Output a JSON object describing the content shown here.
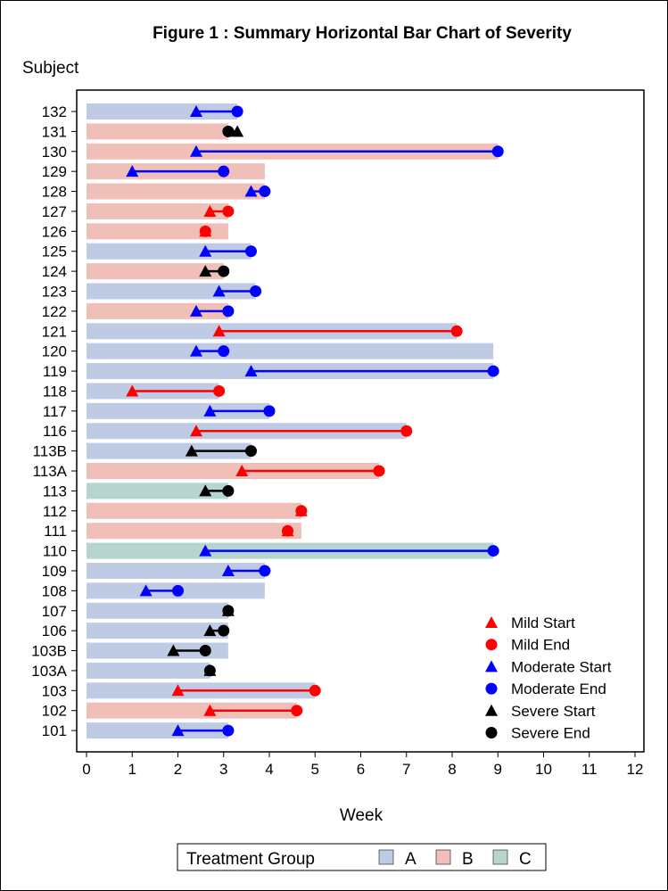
{
  "chart_data": {
    "type": "bar",
    "title": "Figure 1 : Summary Horizontal Bar Chart of Severity",
    "ylabel": "Subject",
    "xlabel": "Week",
    "xlim": [
      0,
      12
    ],
    "xticks": [
      0,
      1,
      2,
      3,
      4,
      5,
      6,
      7,
      8,
      9,
      10,
      11,
      12
    ],
    "grid": false,
    "group_colors": {
      "A": "#BFCAE4",
      "B": "#EFBFB8",
      "C": "#B5D5CE"
    },
    "severity_colors": {
      "Mild": "#FF0000",
      "Moderate": "#0000FF",
      "Severe": "#000000"
    },
    "subjects": [
      {
        "id": "132",
        "group": "A",
        "end": 3.3,
        "sev": "Moderate",
        "start_ev": 2.4,
        "end_ev": 3.3
      },
      {
        "id": "131",
        "group": "B",
        "end": 3.1,
        "sev": "Severe",
        "start_ev": 3.3,
        "end_ev": 3.1
      },
      {
        "id": "130",
        "group": "B",
        "end": 9.0,
        "sev": "Moderate",
        "start_ev": 2.4,
        "end_ev": 9.0
      },
      {
        "id": "129",
        "group": "B",
        "end": 3.9,
        "sev": "Moderate",
        "start_ev": 1.0,
        "end_ev": 3.0
      },
      {
        "id": "128",
        "group": "B",
        "end": 3.9,
        "sev": "Moderate",
        "start_ev": 3.6,
        "end_ev": 3.9
      },
      {
        "id": "127",
        "group": "B",
        "end": 3.1,
        "sev": "Mild",
        "start_ev": 2.7,
        "end_ev": 3.1
      },
      {
        "id": "126",
        "group": "B",
        "end": 3.1,
        "sev": "Mild",
        "start_ev": 2.6,
        "end_ev": 2.6
      },
      {
        "id": "125",
        "group": "A",
        "end": 3.6,
        "sev": "Moderate",
        "start_ev": 2.6,
        "end_ev": 3.6
      },
      {
        "id": "124",
        "group": "B",
        "end": 3.0,
        "sev": "Severe",
        "start_ev": 2.6,
        "end_ev": 3.0
      },
      {
        "id": "123",
        "group": "A",
        "end": 3.7,
        "sev": "Moderate",
        "start_ev": 2.9,
        "end_ev": 3.7
      },
      {
        "id": "122",
        "group": "B",
        "end": 3.1,
        "sev": "Moderate",
        "start_ev": 2.4,
        "end_ev": 3.1
      },
      {
        "id": "121",
        "group": "A",
        "end": 8.1,
        "sev": "Mild",
        "start_ev": 2.9,
        "end_ev": 8.1
      },
      {
        "id": "120",
        "group": "A",
        "end": 8.9,
        "sev": "Moderate",
        "start_ev": 2.4,
        "end_ev": 3.0
      },
      {
        "id": "119",
        "group": "A",
        "end": 8.9,
        "sev": "Moderate",
        "start_ev": 3.6,
        "end_ev": 8.9
      },
      {
        "id": "118",
        "group": "A",
        "end": 2.9,
        "sev": "Mild",
        "start_ev": 1.0,
        "end_ev": 2.9
      },
      {
        "id": "117",
        "group": "A",
        "end": 4.0,
        "sev": "Moderate",
        "start_ev": 2.7,
        "end_ev": 4.0
      },
      {
        "id": "116",
        "group": "A",
        "end": 7.0,
        "sev": "Mild",
        "start_ev": 2.4,
        "end_ev": 7.0
      },
      {
        "id": "113B",
        "group": "A",
        "end": 3.6,
        "sev": "Severe",
        "start_ev": 2.3,
        "end_ev": 3.6
      },
      {
        "id": "113A",
        "group": "B",
        "end": 6.4,
        "sev": "Mild",
        "start_ev": 3.4,
        "end_ev": 6.4
      },
      {
        "id": "113",
        "group": "C",
        "end": 3.1,
        "sev": "Severe",
        "start_ev": 2.6,
        "end_ev": 3.1
      },
      {
        "id": "112",
        "group": "B",
        "end": 4.7,
        "sev": "Mild",
        "start_ev": 4.7,
        "end_ev": 4.7
      },
      {
        "id": "111",
        "group": "B",
        "end": 4.7,
        "sev": "Mild",
        "start_ev": 4.4,
        "end_ev": 4.4
      },
      {
        "id": "110",
        "group": "C",
        "end": 8.9,
        "sev": "Moderate",
        "start_ev": 2.6,
        "end_ev": 8.9
      },
      {
        "id": "109",
        "group": "A",
        "end": 3.9,
        "sev": "Moderate",
        "start_ev": 3.1,
        "end_ev": 3.9
      },
      {
        "id": "108",
        "group": "A",
        "end": 3.9,
        "sev": "Moderate",
        "start_ev": 1.3,
        "end_ev": 2.0
      },
      {
        "id": "107",
        "group": "A",
        "end": 3.1,
        "sev": "Severe",
        "start_ev": 3.1,
        "end_ev": 3.1
      },
      {
        "id": "106",
        "group": "A",
        "end": 3.1,
        "sev": "Severe",
        "start_ev": 2.7,
        "end_ev": 3.0
      },
      {
        "id": "103B",
        "group": "A",
        "end": 3.1,
        "sev": "Severe",
        "start_ev": 1.9,
        "end_ev": 2.6
      },
      {
        "id": "103A",
        "group": "A",
        "end": 2.7,
        "sev": "Severe",
        "start_ev": 2.7,
        "end_ev": 2.7
      },
      {
        "id": "103",
        "group": "A",
        "end": 5.0,
        "sev": "Mild",
        "start_ev": 2.0,
        "end_ev": 5.0
      },
      {
        "id": "102",
        "group": "B",
        "end": 4.6,
        "sev": "Mild",
        "start_ev": 2.7,
        "end_ev": 4.6
      },
      {
        "id": "101",
        "group": "A",
        "end": 3.1,
        "sev": "Moderate",
        "start_ev": 2.0,
        "end_ev": 3.1
      }
    ],
    "legend_inner": {
      "placement": "bottom-right",
      "entries": [
        {
          "label": "Mild Start",
          "sev": "Mild",
          "shape": "triangle"
        },
        {
          "label": "Mild End",
          "sev": "Mild",
          "shape": "circle"
        },
        {
          "label": "Moderate Start",
          "sev": "Moderate",
          "shape": "triangle"
        },
        {
          "label": "Moderate End",
          "sev": "Moderate",
          "shape": "circle"
        },
        {
          "label": "Severe Start",
          "sev": "Severe",
          "shape": "triangle"
        },
        {
          "label": "Severe End",
          "sev": "Severe",
          "shape": "circle"
        }
      ]
    },
    "legend_groups": {
      "placement": "bottom",
      "title": "Treatment Group",
      "entries": [
        "A",
        "B",
        "C"
      ]
    }
  }
}
